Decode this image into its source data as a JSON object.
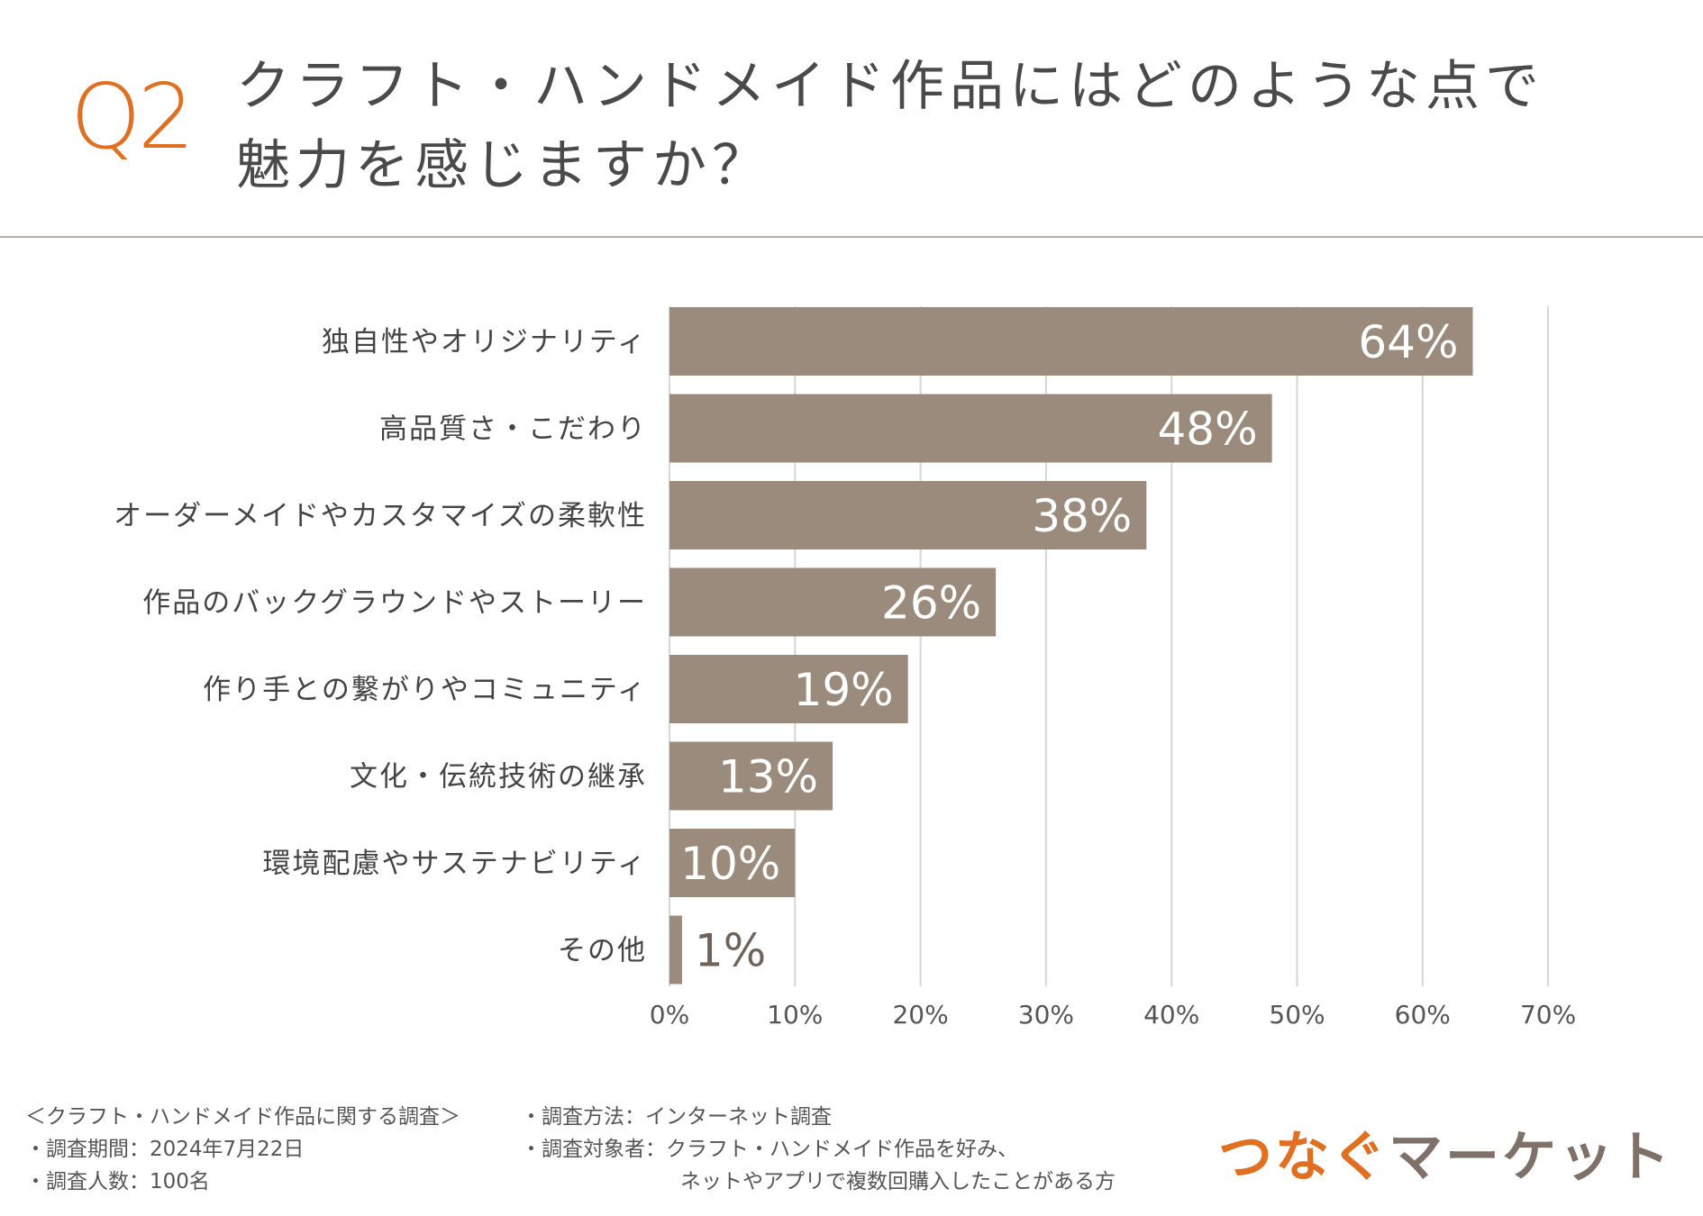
{
  "header": {
    "q_label": "Q2",
    "title_line1": "クラフト・ハンドメイド作品にはどのような点で",
    "title_line2": "魅力を感じますか？"
  },
  "chart_data": {
    "type": "bar",
    "orientation": "horizontal",
    "categories": [
      "独自性やオリジナリティ",
      "高品質さ・こだわり",
      "オーダーメイドやカスタマイズの柔軟性",
      "作品のバックグラウンドやストーリー",
      "作り手との繋がりやコミュニティ",
      "文化・伝統技術の継承",
      "環境配慮やサステナビリティ",
      "その他"
    ],
    "values": [
      64,
      48,
      38,
      26,
      19,
      13,
      10,
      1
    ],
    "value_labels": [
      "64%",
      "48%",
      "38%",
      "26%",
      "19%",
      "13%",
      "10%",
      "1%"
    ],
    "xlim": [
      0,
      70
    ],
    "ticks": [
      "0%",
      "10%",
      "20%",
      "30%",
      "40%",
      "50%",
      "60%",
      "70%"
    ],
    "grid": true,
    "bar_color": "#9a8b7c",
    "grid_color": "#d6d6d6"
  },
  "footer": {
    "survey_name": "＜クラフト・ハンドメイド作品に関する調査＞",
    "period": "・調査期間：2024年7月22日",
    "count": "・調査人数：100名",
    "method": "・調査方法：インターネット調査",
    "target_line1": "・調査対象者：クラフト・ハンドメイド作品を好み、",
    "target_line2": "ネットやアプリで複数回購入したことがある方"
  },
  "logo": {
    "part1": "つなぐ",
    "part2": "マーケット"
  },
  "colors": {
    "accent": "#e07020",
    "bar": "#9a8b7c",
    "logo_gray": "#7f7068"
  }
}
